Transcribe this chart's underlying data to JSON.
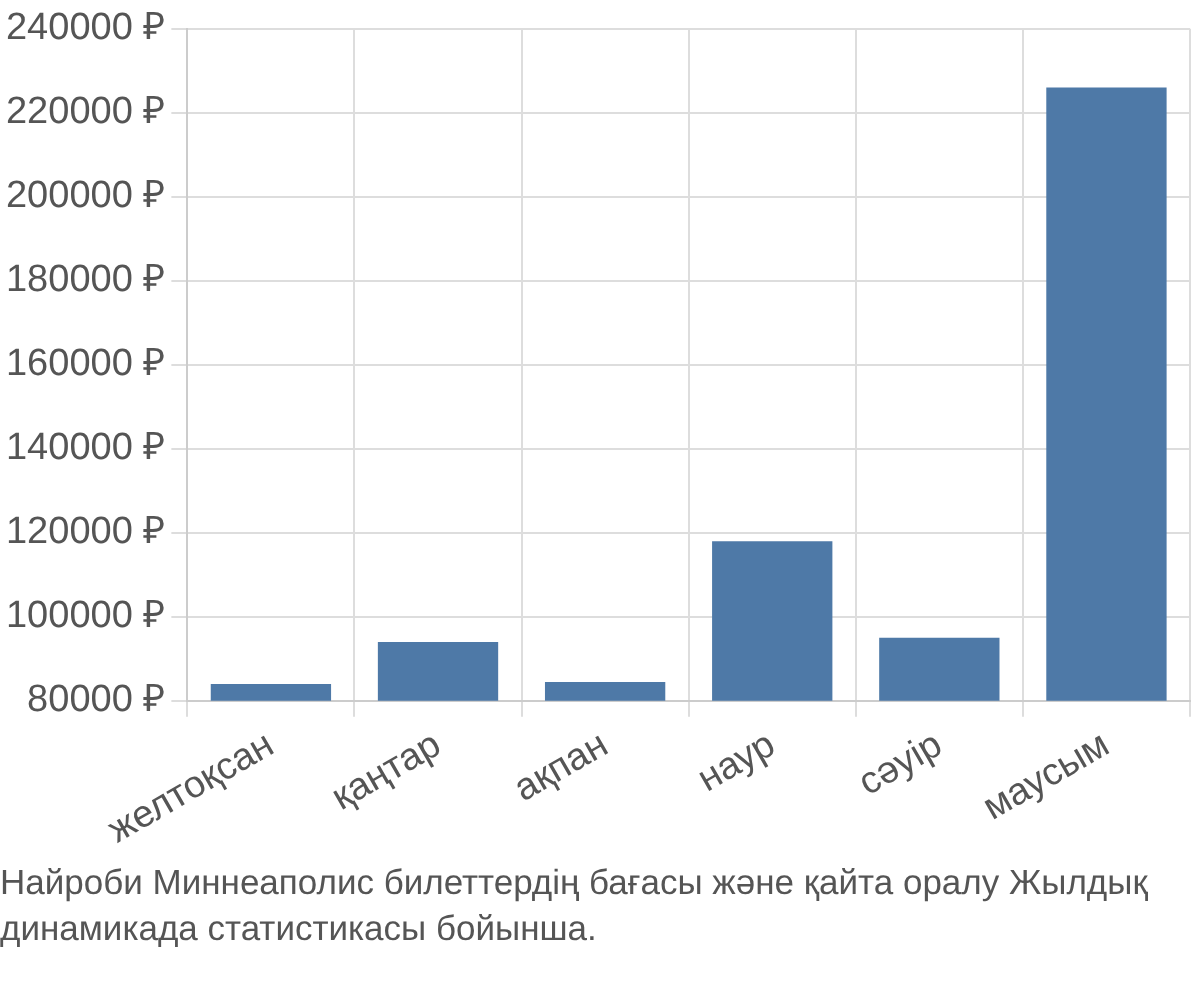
{
  "chart_data": {
    "type": "bar",
    "categories": [
      "желтоқсан",
      "қаңтар",
      "ақпан",
      "наур",
      "сәуір",
      "маусым"
    ],
    "values": [
      84000,
      94000,
      84500,
      118000,
      95000,
      226000
    ],
    "color": "#4e79a7",
    "ylim": [
      80000,
      240000
    ],
    "yticks": [
      {
        "value": 80000,
        "label": "80000 ₽"
      },
      {
        "value": 100000,
        "label": "100000 ₽"
      },
      {
        "value": 120000,
        "label": "120000 ₽"
      },
      {
        "value": 140000,
        "label": "140000 ₽"
      },
      {
        "value": 160000,
        "label": "160000 ₽"
      },
      {
        "value": 180000,
        "label": "180000 ₽"
      },
      {
        "value": 200000,
        "label": "200000 ₽"
      },
      {
        "value": 220000,
        "label": "220000 ₽"
      },
      {
        "value": 240000,
        "label": "240000 ₽"
      }
    ],
    "grid": true,
    "annotations": [
      "Найроби Миннеаполис билеттердің бағасы және қайта оралу Жылдық динамикада статистикасы бойынша."
    ]
  }
}
